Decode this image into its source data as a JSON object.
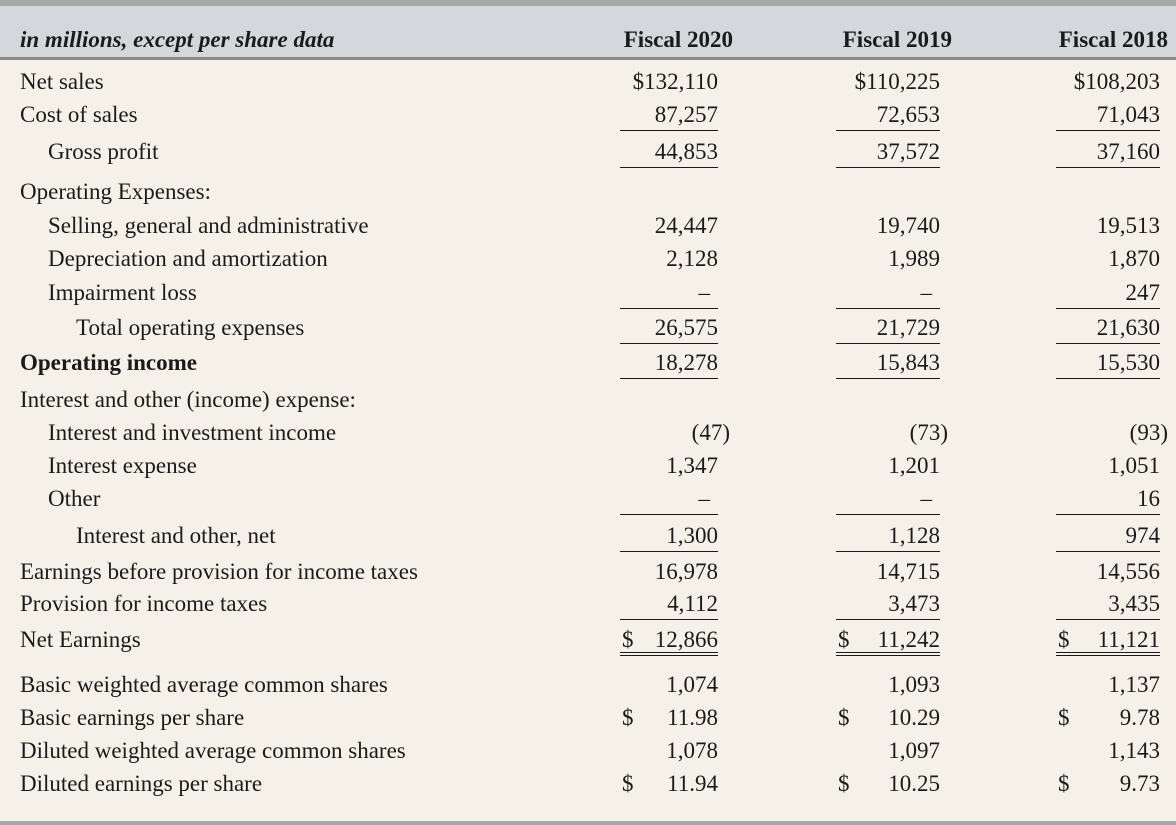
{
  "header": {
    "label": "in millions, except per share data",
    "columns": [
      "Fiscal 2020",
      "Fiscal 2019",
      "Fiscal 2018"
    ]
  },
  "rows": [
    {
      "label": "Net sales",
      "values": [
        "$132,110",
        "$110,225",
        "$108,203"
      ]
    },
    {
      "label": "Cost of sales",
      "values": [
        "87,257",
        "72,653",
        "71,043"
      ]
    },
    {
      "label": "Gross profit",
      "values": [
        "44,853",
        "37,572",
        "37,160"
      ]
    },
    {
      "label": "Operating Expenses:",
      "values": [
        "",
        "",
        ""
      ]
    },
    {
      "label": "Selling, general and administrative",
      "values": [
        "24,447",
        "19,740",
        "19,513"
      ]
    },
    {
      "label": "Depreciation and amortization",
      "values": [
        "2,128",
        "1,989",
        "1,870"
      ]
    },
    {
      "label": "Impairment loss",
      "values": [
        "–",
        "–",
        "247"
      ]
    },
    {
      "label": "Total operating expenses",
      "values": [
        "26,575",
        "21,729",
        "21,630"
      ]
    },
    {
      "label": "Operating income",
      "values": [
        "18,278",
        "15,843",
        "15,530"
      ]
    },
    {
      "label": "Interest and other (income) expense:",
      "values": [
        "",
        "",
        ""
      ]
    },
    {
      "label": "Interest and investment income",
      "values": [
        "(47)",
        "(73)",
        "(93)"
      ]
    },
    {
      "label": "Interest expense",
      "values": [
        "1,347",
        "1,201",
        "1,051"
      ]
    },
    {
      "label": "Other",
      "values": [
        "–",
        "–",
        "16"
      ]
    },
    {
      "label": "Interest and other, net",
      "values": [
        "1,300",
        "1,128",
        "974"
      ]
    },
    {
      "label": "Earnings before provision for income taxes",
      "values": [
        "16,978",
        "14,715",
        "14,556"
      ]
    },
    {
      "label": "Provision for income taxes",
      "values": [
        "4,112",
        "3,473",
        "3,435"
      ]
    },
    {
      "label": "Net Earnings",
      "values": [
        "12,866",
        "11,242",
        "11,121"
      ],
      "currency": "$"
    },
    {
      "label": "Basic weighted average common shares",
      "values": [
        "1,074",
        "1,093",
        "1,137"
      ]
    },
    {
      "label": "Basic earnings per share",
      "values": [
        "11.98",
        "10.29",
        "9.78"
      ],
      "currency": "$"
    },
    {
      "label": "Diluted weighted average common shares",
      "values": [
        "1,078",
        "1,097",
        "1,143"
      ]
    },
    {
      "label": "Diluted earnings per share",
      "values": [
        "11.94",
        "10.25",
        "9.73"
      ],
      "currency": "$"
    }
  ]
}
